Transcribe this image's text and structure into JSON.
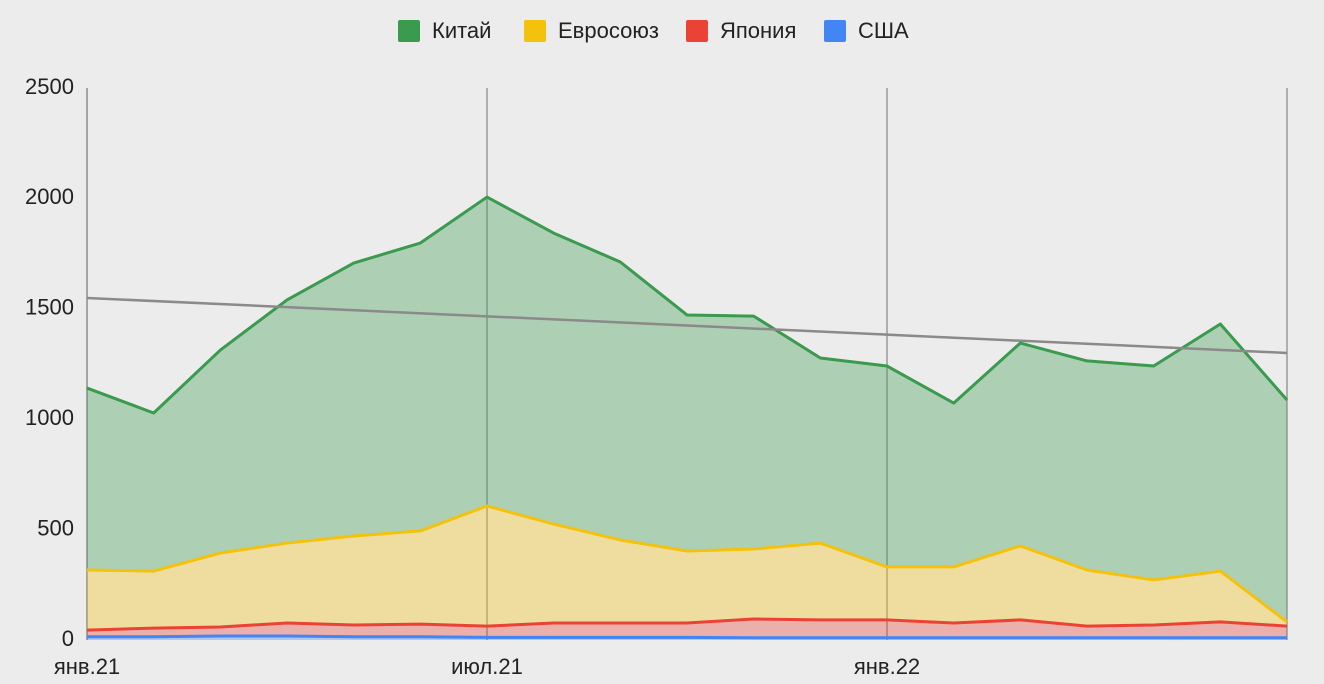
{
  "chart_data": {
    "type": "stacked_area",
    "categories": [
      "янв.21",
      null,
      null,
      null,
      null,
      null,
      "июл.21",
      null,
      null,
      null,
      null,
      null,
      "янв.22",
      null,
      null,
      null,
      null,
      null,
      null
    ],
    "series": [
      {
        "name": "Китай",
        "color": "#3a9a4e",
        "values": [
          824,
          716,
          919,
          1101,
          1236,
          1304,
          1399,
          1318,
          1259,
          1069,
          1055,
          838,
          910,
          742,
          919,
          947,
          969,
          1119,
          1005
        ]
      },
      {
        "name": "Евросоюз",
        "color": "#f4c20d",
        "values": [
          272,
          258,
          335,
          362,
          403,
          422,
          544,
          448,
          376,
          326,
          317,
          348,
          240,
          254,
          335,
          254,
          204,
          230,
          19
        ]
      },
      {
        "name": "Япония",
        "color": "#ea4335",
        "values": [
          30,
          39,
          41,
          59,
          53,
          57,
          51,
          65,
          65,
          65,
          85,
          81,
          81,
          67,
          81,
          53,
          58,
          72,
          53
        ]
      },
      {
        "name": "США",
        "color": "#4285f4",
        "values": [
          15,
          15,
          18,
          18,
          15,
          15,
          12,
          12,
          12,
          12,
          10,
          10,
          10,
          10,
          10,
          10,
          10,
          10,
          10
        ]
      }
    ],
    "trendline": {
      "color": "#8a8a8a",
      "values": [
        1549,
        1300
      ]
    },
    "ylim": [
      0,
      2500
    ],
    "yticks": [
      0,
      500,
      1000,
      1500,
      2000,
      2500
    ],
    "legend": "top"
  }
}
